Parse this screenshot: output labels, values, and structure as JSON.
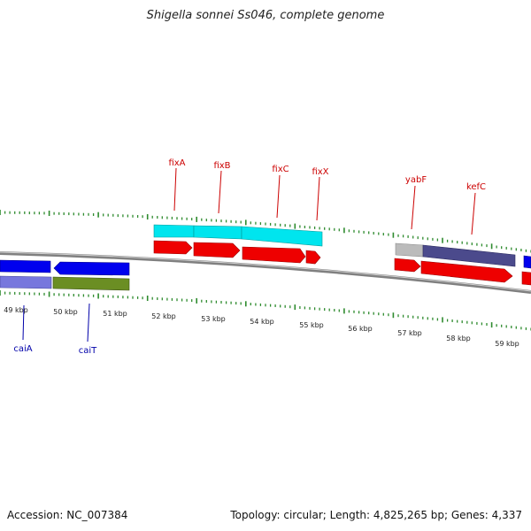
{
  "title": "Shigella sonnei Ss046, complete genome",
  "footer": {
    "accession": "Accession: NC_007384",
    "stats": "Topology: circular; Length: 4,825,265 bp; Genes: 4,337"
  },
  "colors": {
    "upper_gene_label": "#cc0000",
    "lower_gene_label": "#0000aa",
    "backbone": "#808080",
    "tick": "#2e8b2e"
  },
  "scale_labels": [
    "49 kbp",
    "50 kbp",
    "51 kbp",
    "52 kbp",
    "53 kbp",
    "54 kbp",
    "55 kbp",
    "56 kbp",
    "57 kbp",
    "58 kbp",
    "59 kbp"
  ],
  "gene_labels_upper": [
    "fixA",
    "fixB",
    "fixC",
    "fixX",
    "yabF",
    "kefC"
  ],
  "gene_labels_lower": [
    "caiA",
    "caiT"
  ]
}
